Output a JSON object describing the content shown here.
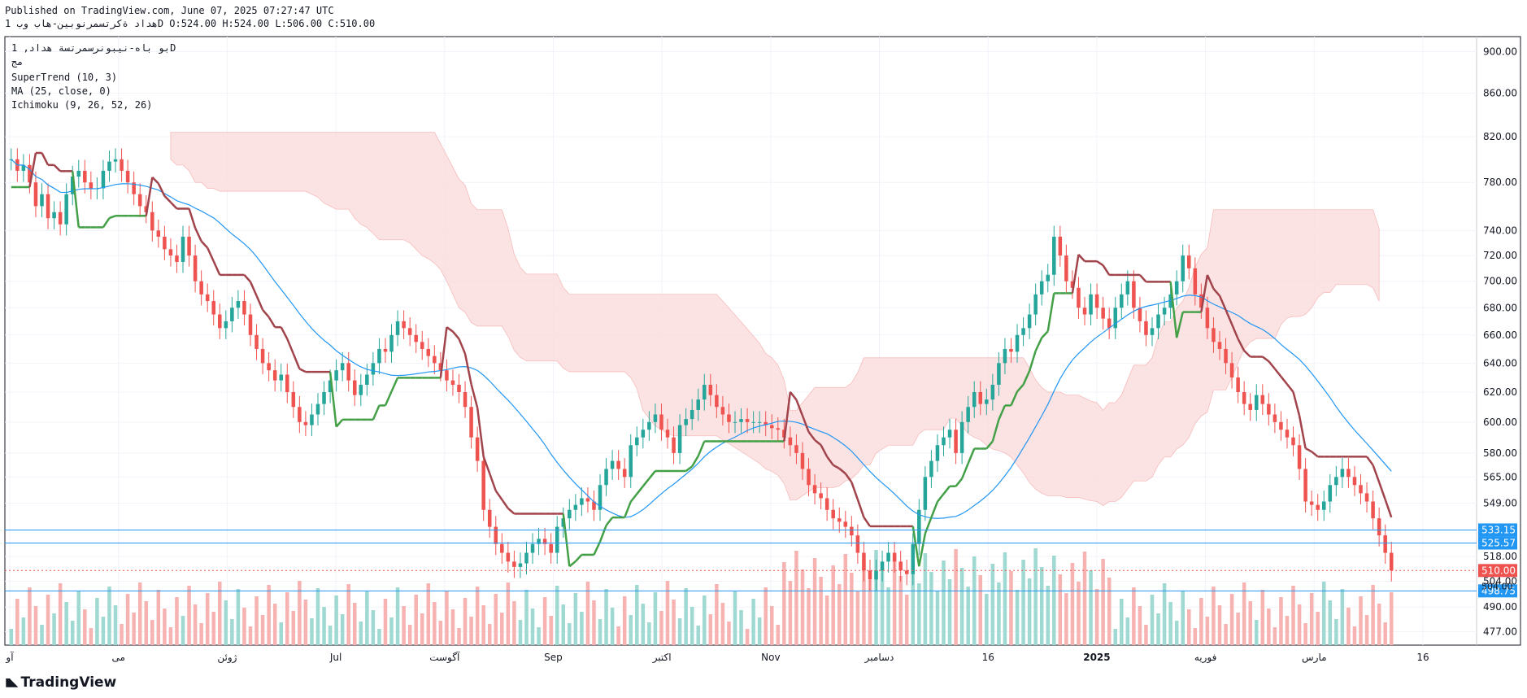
{
  "header": {
    "published": "Published on TradingView.com, June 07, 2025 07:27:47 UTC",
    "ohlc_line": "هداد ةكرتسمرنوبين-هاب وب 1D O:524.00 H:524.00 L:506.00 C:510.00"
  },
  "legend": {
    "symbol": "بو باه-نيبونرسمرتسة هداد, 1D",
    "exchange": "مج",
    "supertrend": "SuperTrend (10, 3)",
    "ma": "MA (25, close, 0)",
    "ichimoku": "Ichimoku (9, 26, 52, 26)"
  },
  "branding": {
    "logo_text": "TradingView",
    "icon": "tradingview-logo-icon"
  },
  "colors": {
    "up": "#26a69a",
    "down": "#ef5350",
    "supertrend_up": "#43a047",
    "supertrend_down": "#a1434b",
    "ma": "#2196f3",
    "cloud_bear": "#fcdada",
    "cloud_bull": "#dcefd8",
    "hline": "#2196f3",
    "last_price": "#ef5350"
  },
  "chart_data": {
    "type": "candlestick",
    "y_scale": "log",
    "ylim": [
      470,
      915
    ],
    "y_ticks": [
      "900.00",
      "860.00",
      "820.00",
      "780.00",
      "740.00",
      "720.00",
      "700.00",
      "680.00",
      "660.00",
      "640.00",
      "620.00",
      "600.00",
      "580.00",
      "565.00",
      "549.00",
      "518.00",
      "504.00",
      "490.00",
      "477.00"
    ],
    "x_ticks": [
      "آو",
      "مى",
      "ژوئن",
      "Jul",
      "آگوست",
      "Sep",
      "اکتبر",
      "Nov",
      "دسامبر",
      "16",
      "2025",
      "فوریه",
      "مارس",
      "16"
    ],
    "x_tick_bold": [
      "2025"
    ],
    "horizontal_lines": [
      {
        "value": 533.15,
        "label": "533.15"
      },
      {
        "value": 525.57,
        "label": "525.57"
      },
      {
        "value": 498.75,
        "label": "498.75"
      }
    ],
    "last_price": {
      "value": 510.0,
      "label": "510.00"
    },
    "extra_price_label": "504.00",
    "candles_close": [
      800,
      790,
      795,
      780,
      760,
      770,
      750,
      755,
      745,
      770,
      785,
      790,
      780,
      775,
      775,
      790,
      798,
      800,
      790,
      780,
      770,
      760,
      755,
      740,
      735,
      725,
      720,
      715,
      735,
      720,
      700,
      690,
      685,
      675,
      665,
      670,
      680,
      685,
      675,
      660,
      650,
      640,
      635,
      628,
      632,
      620,
      610,
      600,
      598,
      605,
      612,
      620,
      628,
      635,
      640,
      628,
      618,
      625,
      632,
      640,
      650,
      648,
      660,
      670,
      665,
      660,
      655,
      650,
      645,
      640,
      635,
      628,
      625,
      620,
      610,
      590,
      575,
      545,
      535,
      525,
      520,
      515,
      512,
      514,
      520,
      525,
      528,
      525,
      520,
      535,
      540,
      545,
      548,
      552,
      550,
      545,
      560,
      570,
      575,
      570,
      565,
      585,
      590,
      595,
      600,
      605,
      595,
      590,
      580,
      598,
      602,
      608,
      615,
      625,
      618,
      610,
      605,
      600,
      600,
      602,
      600,
      600,
      600,
      598,
      596,
      595,
      590,
      585,
      580,
      570,
      560,
      555,
      552,
      545,
      540,
      538,
      535,
      530,
      520,
      510,
      505,
      510,
      515,
      520,
      515,
      510,
      508,
      525,
      545,
      565,
      575,
      585,
      590,
      595,
      580,
      600,
      610,
      620,
      612,
      615,
      625,
      640,
      650,
      648,
      660,
      665,
      675,
      690,
      700,
      705,
      735,
      720,
      700,
      695,
      680,
      675,
      690,
      680,
      672,
      665,
      680,
      690,
      700,
      680,
      670,
      660,
      665,
      675,
      680,
      690,
      700,
      720,
      710,
      690,
      680,
      665,
      655,
      650,
      640,
      630,
      620,
      612,
      608,
      618,
      612,
      605,
      600,
      595,
      590,
      585,
      570,
      550,
      548,
      545,
      550,
      560,
      565,
      570,
      565,
      560,
      555,
      550,
      540,
      530,
      520,
      510
    ],
    "volume_note": "volume bars at bottom of pane, green on up days and red on down days"
  }
}
